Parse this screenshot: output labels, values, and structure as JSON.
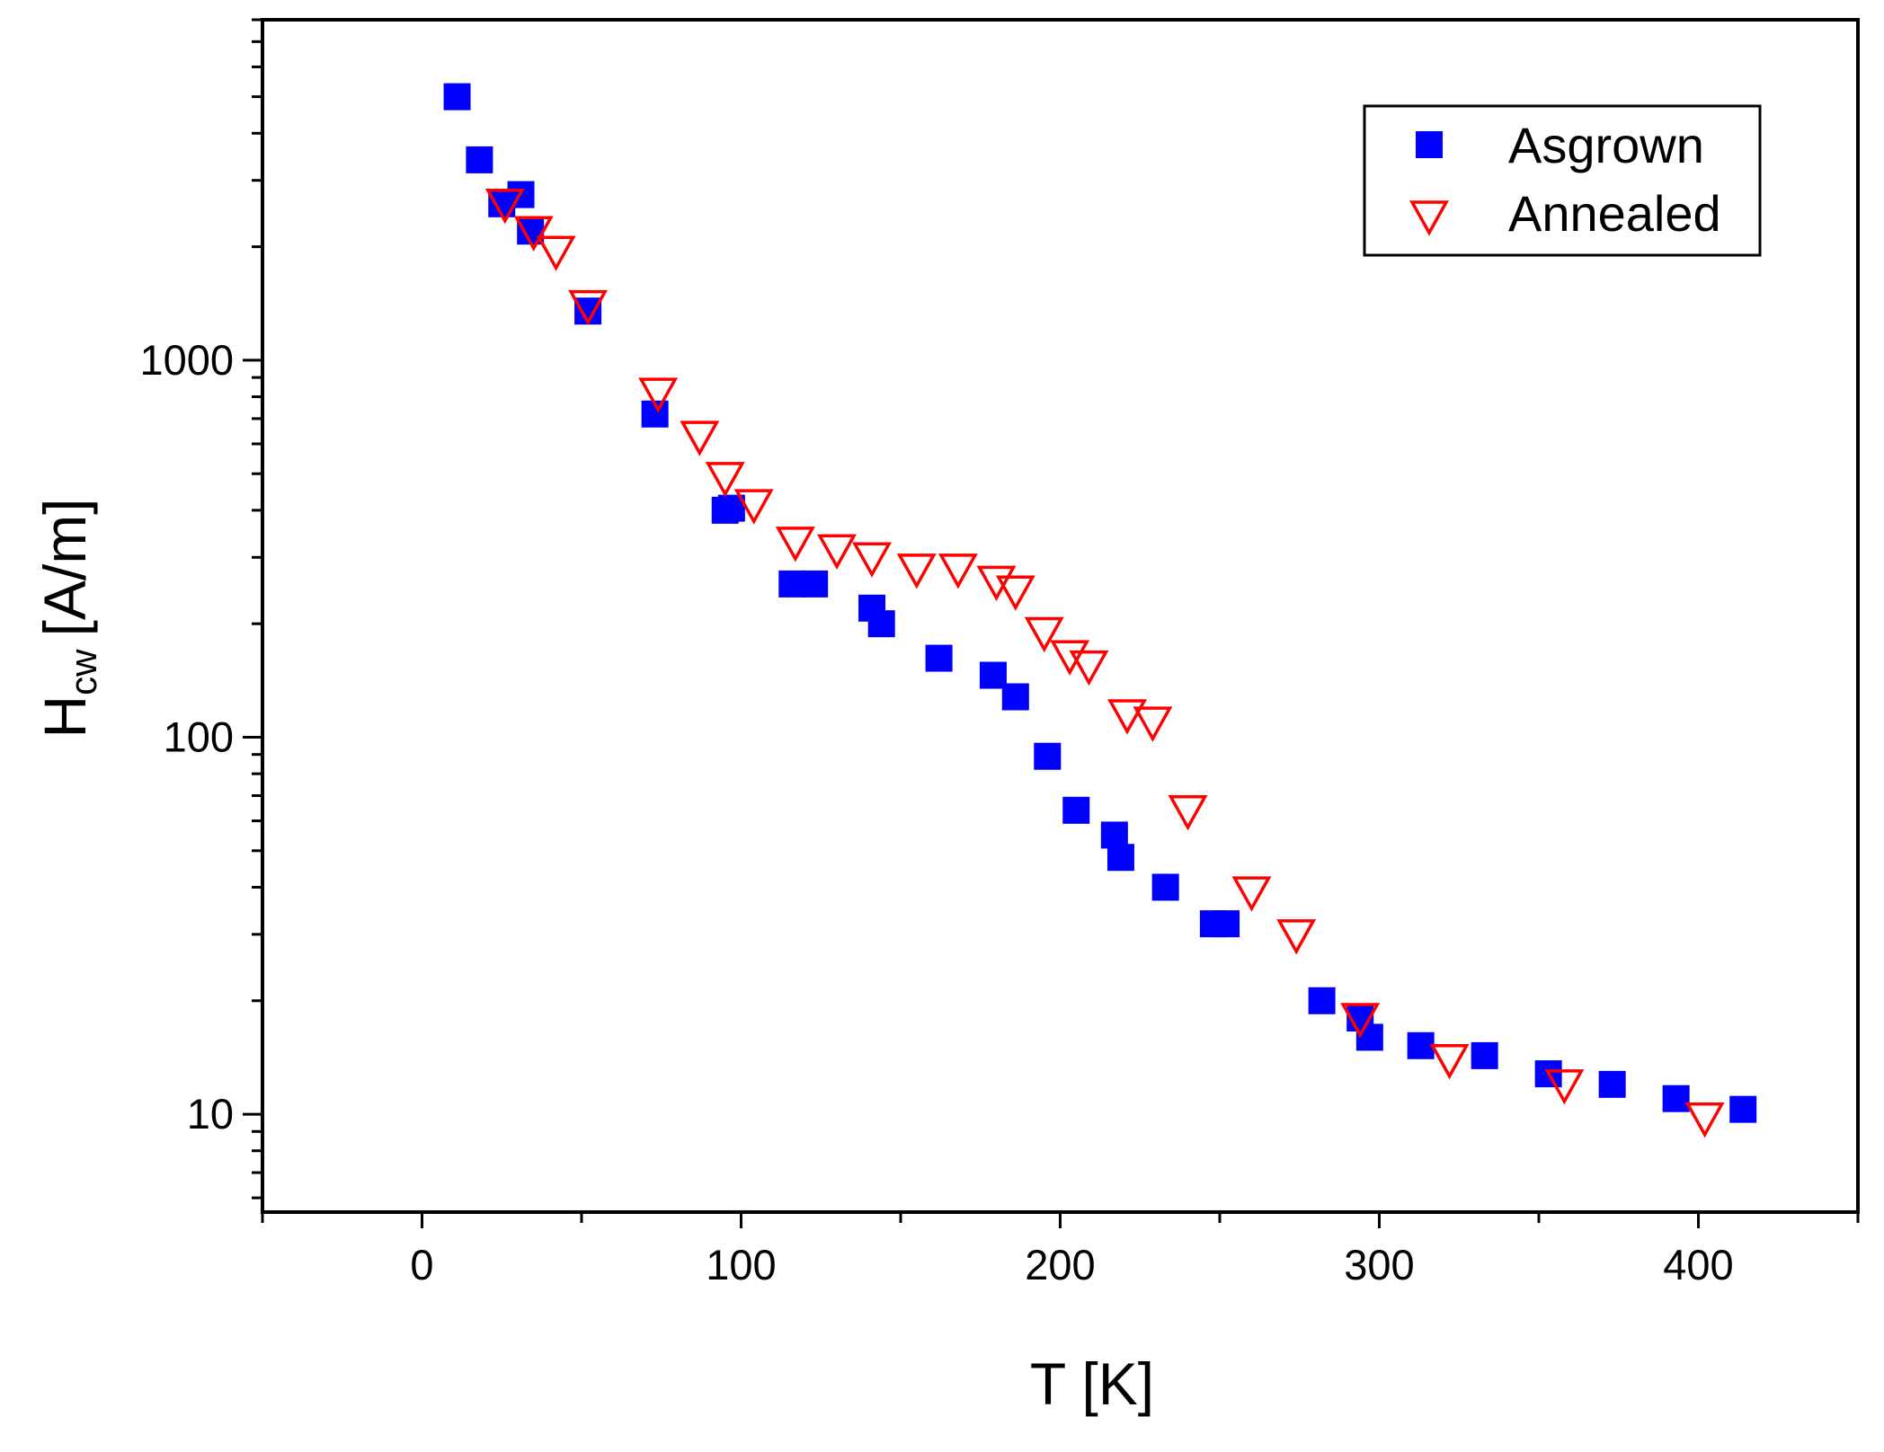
{
  "chart_data": {
    "type": "scatter",
    "title": "",
    "xlabel": "T [K]",
    "ylabel_main": "H",
    "ylabel_sub": "cw",
    "ylabel_unit": "[A/m]",
    "xscale": "linear",
    "yscale": "log",
    "xlim": [
      -50,
      450
    ],
    "ylim": [
      5.5,
      8000
    ],
    "x_ticks": [
      0,
      100,
      200,
      300,
      400
    ],
    "x_tick_labels": [
      "0",
      "100",
      "200",
      "300",
      "400"
    ],
    "y_ticks": [
      10,
      100,
      1000
    ],
    "y_tick_labels": [
      "10",
      "100",
      "1000"
    ],
    "grid": false,
    "legend_position": "top-right",
    "series": [
      {
        "name": "Asgrown",
        "marker": "filled-square",
        "color": "#0000ff",
        "x": [
          11,
          18,
          25,
          31,
          34,
          52,
          73,
          95,
          97,
          116,
          123,
          141,
          144,
          162,
          179,
          186,
          196,
          205,
          217,
          219,
          233,
          248,
          252,
          282,
          294,
          297,
          313,
          333,
          353,
          373,
          393,
          414
        ],
        "y": [
          5000,
          3400,
          2600,
          2750,
          2200,
          1350,
          720,
          400,
          405,
          255,
          255,
          220,
          200,
          162,
          146,
          128,
          89,
          64,
          55,
          48,
          40,
          32,
          32,
          20,
          18,
          16,
          15.2,
          14.3,
          12.8,
          12,
          11,
          10.3
        ]
      },
      {
        "name": "Annealed",
        "marker": "open-triangle-down",
        "color": "#ff0000",
        "x": [
          26,
          35,
          42,
          52,
          74,
          87,
          95,
          104,
          117,
          130,
          141,
          155,
          168,
          180,
          186,
          195,
          203,
          209,
          221,
          229,
          240,
          260,
          274,
          294,
          322,
          358,
          402
        ],
        "y": [
          2600,
          2200,
          1950,
          1400,
          820,
          630,
          490,
          415,
          330,
          315,
          300,
          280,
          280,
          260,
          245,
          190,
          165,
          155,
          115,
          110,
          64,
          39,
          30,
          18,
          14,
          12,
          9.8
        ]
      }
    ]
  }
}
